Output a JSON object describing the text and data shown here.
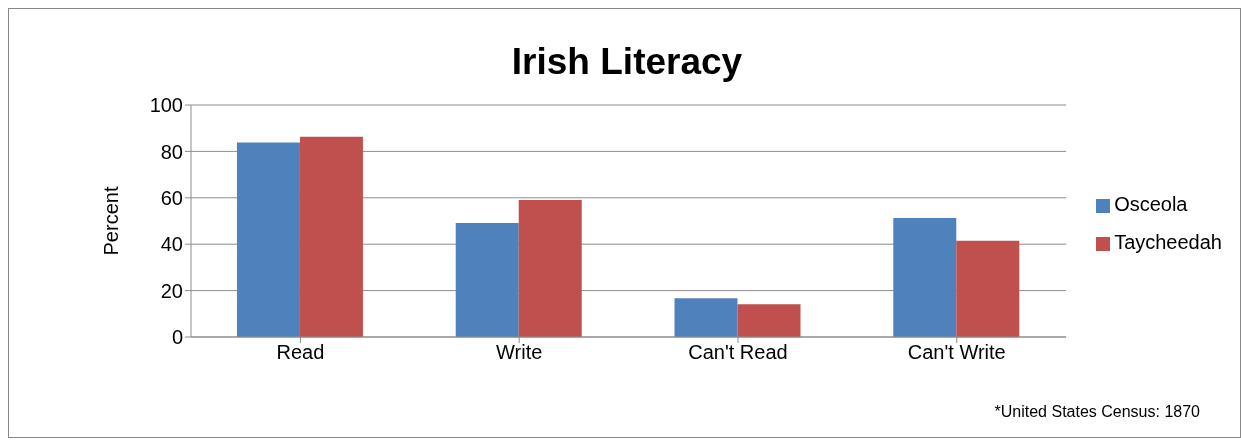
{
  "chart_data": {
    "type": "bar",
    "title": "Irish Literacy",
    "ylabel": "Percent",
    "categories": [
      "Read",
      "Write",
      "Can't Read",
      "Can't Write"
    ],
    "series": [
      {
        "name": "Osceola",
        "color": "#4f81bd",
        "values": [
          83.8,
          49.1,
          16.7,
          51.3
        ]
      },
      {
        "name": "Taycheedah",
        "color": "#c0504d",
        "values": [
          86.3,
          59.0,
          14.1,
          41.5
        ]
      }
    ],
    "ylim": [
      0,
      100
    ],
    "yticks": [
      0,
      20,
      40,
      60,
      80,
      100
    ],
    "grid": "y",
    "legend": "right",
    "annotations": [
      "*United States Census: 1870"
    ]
  }
}
